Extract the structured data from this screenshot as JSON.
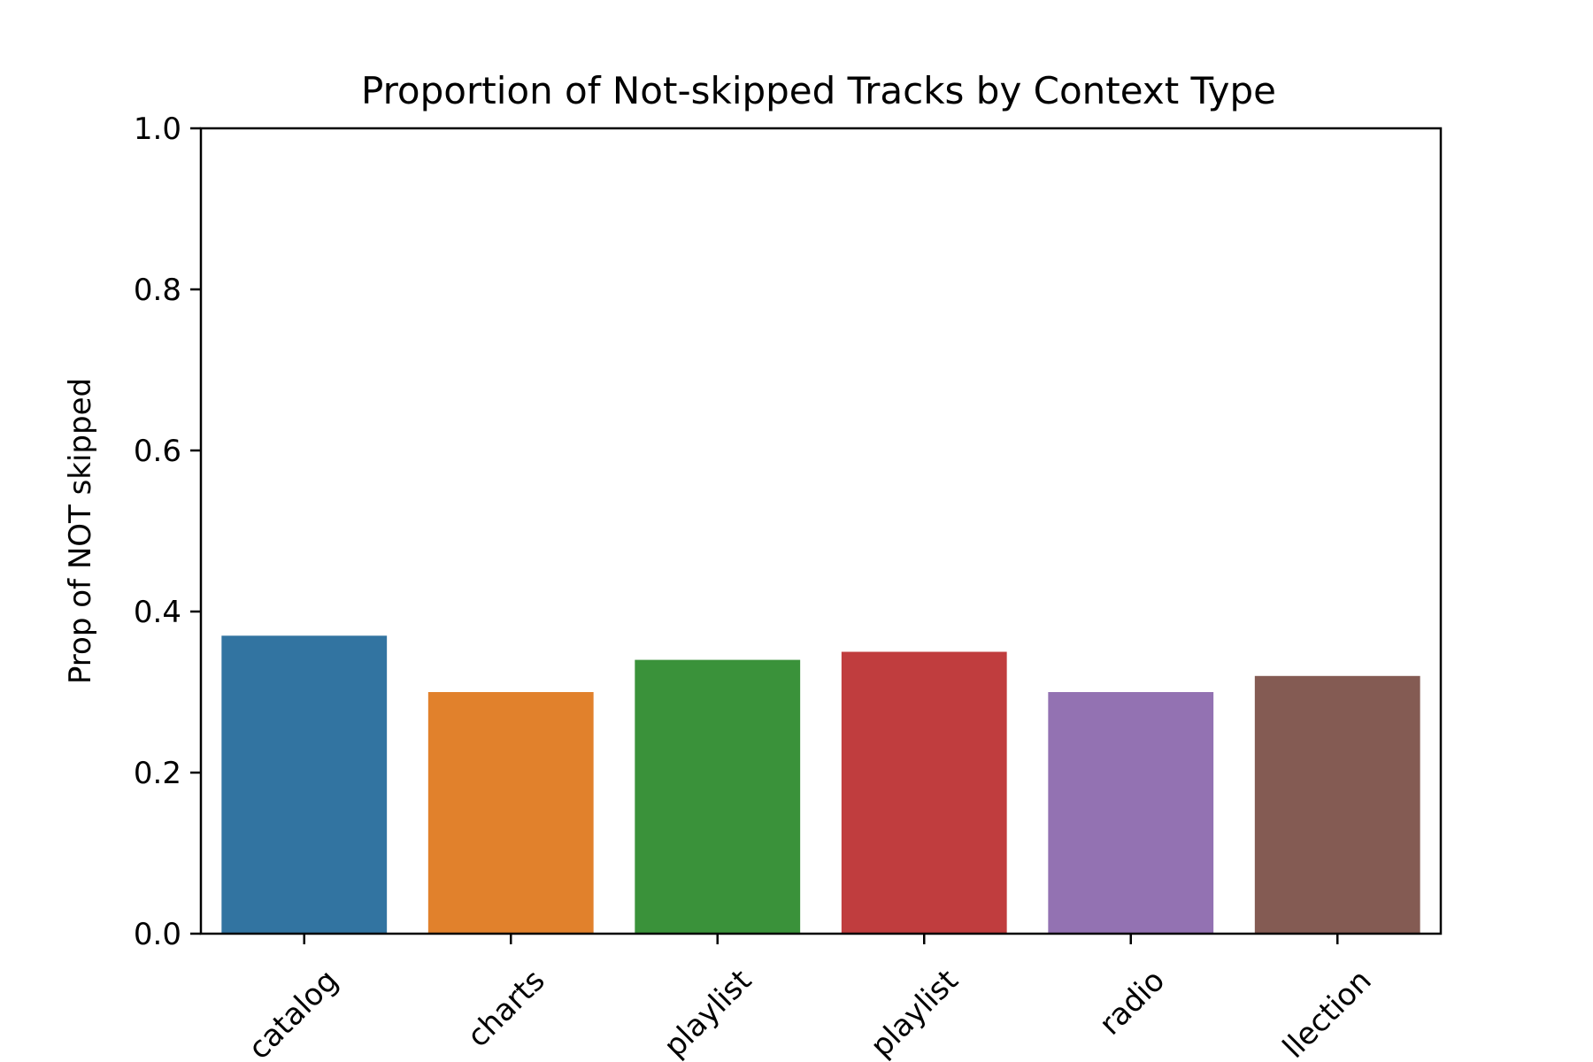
{
  "chart_data": {
    "type": "bar",
    "title": "Proportion of Not-skipped Tracks by Context Type",
    "xlabel": "",
    "ylabel": "Prop of NOT skipped",
    "ylim": [
      0,
      1.0
    ],
    "yticks": [
      0.0,
      0.2,
      0.4,
      0.6,
      0.8,
      1.0
    ],
    "ytick_labels": [
      "0.0",
      "0.2",
      "0.4",
      "0.6",
      "0.8",
      "1.0"
    ],
    "grid": false,
    "categories": [
      "catalog",
      "charts",
      "playlist",
      "playlist",
      "radio",
      "llection"
    ],
    "values": [
      0.37,
      0.3,
      0.34,
      0.35,
      0.3,
      0.32
    ],
    "colors": [
      "#3274a1",
      "#e1812c",
      "#3a923a",
      "#c03d3e",
      "#9372b2",
      "#845b53"
    ]
  }
}
